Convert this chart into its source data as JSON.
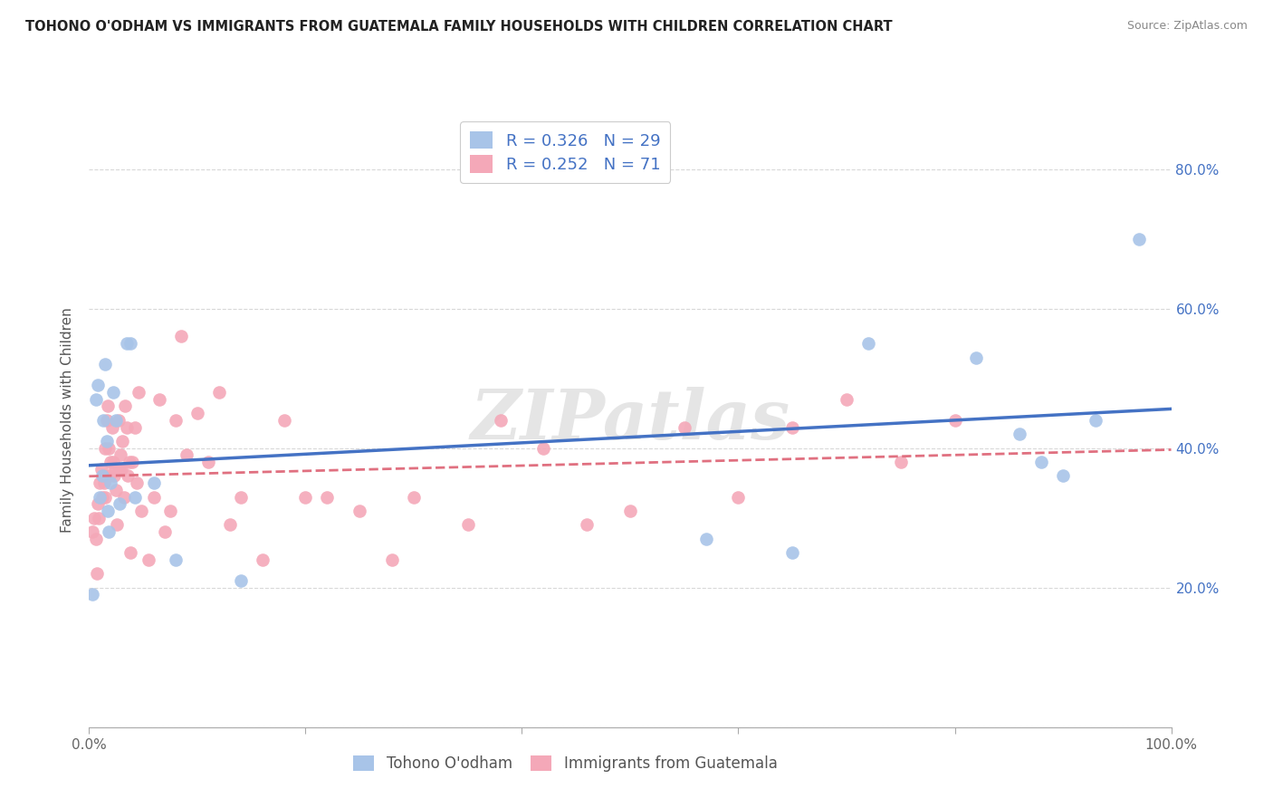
{
  "title": "TOHONO O'ODHAM VS IMMIGRANTS FROM GUATEMALA FAMILY HOUSEHOLDS WITH CHILDREN CORRELATION CHART",
  "source": "Source: ZipAtlas.com",
  "ylabel": "Family Households with Children",
  "series1_name": "Tohono O'odham",
  "series2_name": "Immigrants from Guatemala",
  "series1_R": 0.326,
  "series1_N": 29,
  "series2_R": 0.252,
  "series2_N": 71,
  "series1_color": "#a8c4e8",
  "series2_color": "#f4a8b8",
  "series1_line_color": "#4472C4",
  "series2_line_color": "#E07080",
  "watermark": "ZIPatlas",
  "xlim": [
    0,
    1.0
  ],
  "ylim": [
    0.0,
    0.88
  ],
  "xticks": [
    0.0,
    0.2,
    0.4,
    0.6,
    0.8,
    1.0
  ],
  "yticks": [
    0.0,
    0.2,
    0.4,
    0.6,
    0.8
  ],
  "series1_x": [
    0.003,
    0.006,
    0.008,
    0.01,
    0.012,
    0.013,
    0.015,
    0.016,
    0.017,
    0.018,
    0.02,
    0.022,
    0.025,
    0.028,
    0.035,
    0.038,
    0.042,
    0.06,
    0.08,
    0.14,
    0.57,
    0.65,
    0.72,
    0.82,
    0.86,
    0.88,
    0.9,
    0.93,
    0.97
  ],
  "series1_y": [
    0.19,
    0.47,
    0.49,
    0.33,
    0.36,
    0.44,
    0.52,
    0.41,
    0.31,
    0.28,
    0.35,
    0.48,
    0.44,
    0.32,
    0.55,
    0.55,
    0.33,
    0.35,
    0.24,
    0.21,
    0.27,
    0.25,
    0.55,
    0.53,
    0.42,
    0.38,
    0.36,
    0.44,
    0.7
  ],
  "series2_x": [
    0.003,
    0.005,
    0.006,
    0.007,
    0.008,
    0.009,
    0.01,
    0.011,
    0.012,
    0.013,
    0.014,
    0.015,
    0.015,
    0.016,
    0.017,
    0.018,
    0.019,
    0.02,
    0.021,
    0.022,
    0.023,
    0.024,
    0.025,
    0.026,
    0.027,
    0.028,
    0.029,
    0.03,
    0.031,
    0.032,
    0.033,
    0.035,
    0.036,
    0.037,
    0.038,
    0.04,
    0.042,
    0.044,
    0.046,
    0.048,
    0.055,
    0.06,
    0.065,
    0.07,
    0.075,
    0.08,
    0.085,
    0.09,
    0.1,
    0.11,
    0.12,
    0.13,
    0.14,
    0.16,
    0.18,
    0.2,
    0.22,
    0.25,
    0.28,
    0.3,
    0.35,
    0.38,
    0.42,
    0.46,
    0.5,
    0.55,
    0.6,
    0.65,
    0.7,
    0.75,
    0.8
  ],
  "series2_y": [
    0.28,
    0.3,
    0.27,
    0.22,
    0.32,
    0.3,
    0.35,
    0.37,
    0.33,
    0.36,
    0.35,
    0.33,
    0.4,
    0.44,
    0.46,
    0.4,
    0.36,
    0.38,
    0.43,
    0.38,
    0.36,
    0.37,
    0.34,
    0.29,
    0.44,
    0.37,
    0.39,
    0.37,
    0.41,
    0.33,
    0.46,
    0.43,
    0.36,
    0.38,
    0.25,
    0.38,
    0.43,
    0.35,
    0.48,
    0.31,
    0.24,
    0.33,
    0.47,
    0.28,
    0.31,
    0.44,
    0.56,
    0.39,
    0.45,
    0.38,
    0.48,
    0.29,
    0.33,
    0.24,
    0.44,
    0.33,
    0.33,
    0.31,
    0.24,
    0.33,
    0.29,
    0.44,
    0.4,
    0.29,
    0.31,
    0.43,
    0.33,
    0.43,
    0.47,
    0.38,
    0.44
  ],
  "background_color": "#ffffff",
  "grid_color": "#d8d8d8"
}
